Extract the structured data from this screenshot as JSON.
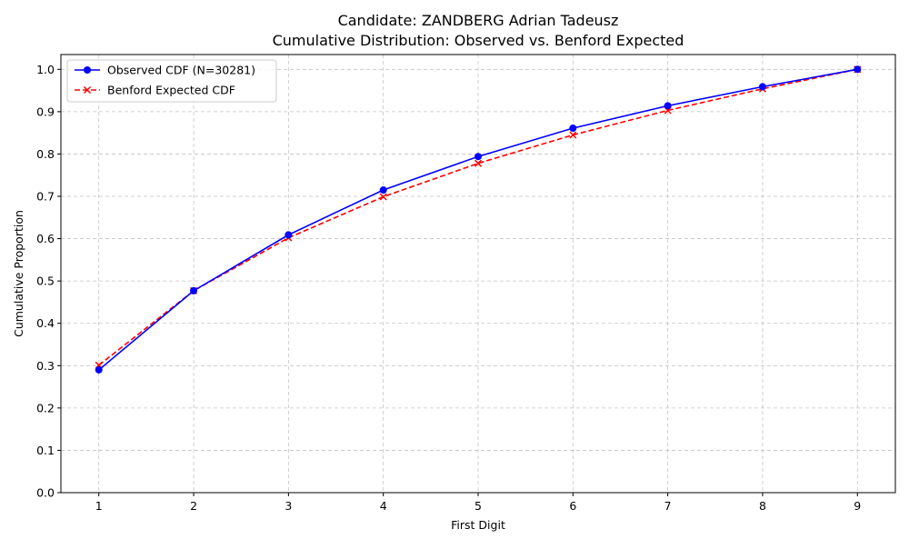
{
  "chart_data": {
    "type": "line",
    "title": "Candidate: ZANDBERG Adrian Tadeusz",
    "subtitle": "Cumulative Distribution: Observed vs. Benford Expected",
    "xlabel": "First Digit",
    "ylabel": "Cumulative Proportion",
    "x": [
      1,
      2,
      3,
      4,
      5,
      6,
      7,
      8,
      9
    ],
    "xlim": [
      0.6,
      9.4
    ],
    "ylim": [
      0.0,
      1.035
    ],
    "x_ticks": [
      "1",
      "2",
      "3",
      "4",
      "5",
      "6",
      "7",
      "8",
      "9"
    ],
    "y_ticks": [
      "0.0",
      "0.1",
      "0.2",
      "0.3",
      "0.4",
      "0.5",
      "0.6",
      "0.7",
      "0.8",
      "0.9",
      "1.0"
    ],
    "y_tick_values": [
      0.0,
      0.1,
      0.2,
      0.3,
      0.4,
      0.5,
      0.6,
      0.7,
      0.8,
      0.9,
      1.0
    ],
    "grid": true,
    "legend_position": "upper-left",
    "series": [
      {
        "name": "Observed CDF (N=30281)",
        "values": [
          0.29,
          0.477,
          0.609,
          0.715,
          0.794,
          0.861,
          0.914,
          0.959,
          1.0
        ],
        "color": "#0000ff",
        "line_style": "solid",
        "marker": "circle"
      },
      {
        "name": "Benford Expected CDF",
        "values": [
          0.301,
          0.477,
          0.602,
          0.699,
          0.778,
          0.845,
          0.903,
          0.954,
          1.0
        ],
        "color": "#ff0000",
        "line_style": "dashed",
        "marker": "x"
      }
    ]
  }
}
